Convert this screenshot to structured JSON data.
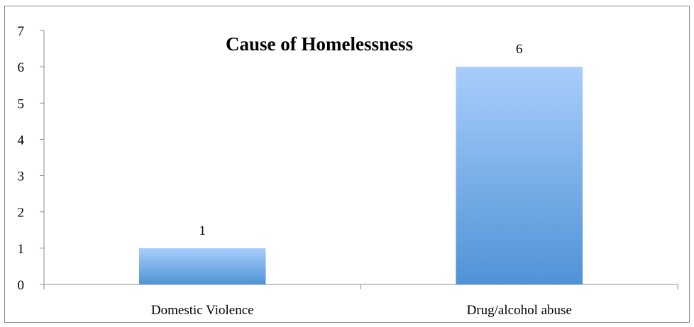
{
  "chart_data": {
    "type": "bar",
    "title": "Cause of Homelessness",
    "categories": [
      "Domestic Violence",
      "Drug/alcohol abuse"
    ],
    "values": [
      1,
      6
    ],
    "data_labels": [
      "1",
      "6"
    ],
    "ylim": [
      0,
      7
    ],
    "yticks": [
      "0",
      "1",
      "2",
      "3",
      "4",
      "5",
      "6",
      "7"
    ],
    "xlabel": "",
    "ylabel": "",
    "grid": false,
    "legend": "none",
    "colors": {
      "bar_top": "#a9cdfc",
      "bar_bottom": "#4f93d6",
      "axis": "#8c8c8c"
    }
  }
}
